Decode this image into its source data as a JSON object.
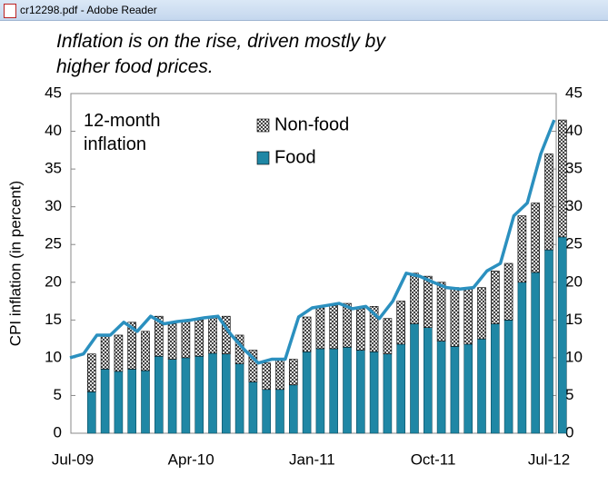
{
  "window_title": "cr12298.pdf - Adobe Reader",
  "chart_data": {
    "type": "bar",
    "stacked": true,
    "title": "Inflation is on the rise, driven mostly by\nhigher food prices.",
    "annotation": "12-month\ninflation",
    "y_label": "CPI inflation (in percent)",
    "categories": [
      "Jul-09",
      null,
      null,
      null,
      null,
      null,
      null,
      null,
      null,
      "Apr-10",
      null,
      null,
      null,
      null,
      null,
      null,
      null,
      null,
      "Jan-11",
      null,
      null,
      null,
      null,
      null,
      null,
      null,
      null,
      "Oct-11",
      null,
      null,
      null,
      null,
      null,
      null,
      null,
      null,
      "Jul-12"
    ],
    "series": [
      {
        "name": "Food",
        "color": "#1f87a5",
        "values": [
          null,
          5.5,
          8.5,
          8.2,
          8.5,
          8.3,
          10.2,
          9.8,
          10,
          10.2,
          10.6,
          10.5,
          9.2,
          6.8,
          5.8,
          5.8,
          6.4,
          10.8,
          11.2,
          11.2,
          11.4,
          11,
          10.8,
          10.5,
          11.8,
          14.5,
          14,
          12.2,
          11.5,
          11.8,
          12.5,
          14.5,
          15,
          20,
          21.3,
          24.3,
          26
        ]
      },
      {
        "name": "Non-food",
        "color": "#000000",
        "values": [
          null,
          5,
          4.5,
          4.8,
          6.2,
          5.2,
          5.3,
          4.7,
          4.8,
          4.8,
          4.7,
          5,
          3.8,
          4.2,
          3.5,
          4,
          3.4,
          4.6,
          5.4,
          5.7,
          5.8,
          5.5,
          6,
          4.7,
          5.7,
          6.7,
          6.8,
          7.8,
          7.8,
          7.3,
          6.8,
          7,
          7.5,
          8.8,
          9.2,
          12.7,
          15.5
        ]
      }
    ],
    "line": {
      "color": "#2b90bf",
      "values": [
        10,
        10.5,
        13,
        13,
        14.7,
        13.5,
        15.5,
        14.5,
        14.8,
        15,
        15.3,
        15.5,
        13,
        11,
        9.3,
        9.8,
        9.8,
        15.4,
        16.6,
        16.9,
        17.2,
        16.5,
        16.8,
        15.2,
        17.5,
        21.2,
        20.8,
        20,
        19.3,
        19.1,
        19.3,
        21.5,
        22.5,
        28.8,
        30.5,
        37,
        41.5
      ]
    },
    "ylim": [
      0,
      45
    ],
    "yticks": [
      0,
      5,
      10,
      15,
      20,
      25,
      30,
      35,
      40,
      45
    ],
    "y2lim": [
      0,
      45
    ],
    "y2ticks": [
      0,
      5,
      10,
      15,
      20,
      25,
      30,
      35,
      40,
      45
    ],
    "grid": false
  }
}
